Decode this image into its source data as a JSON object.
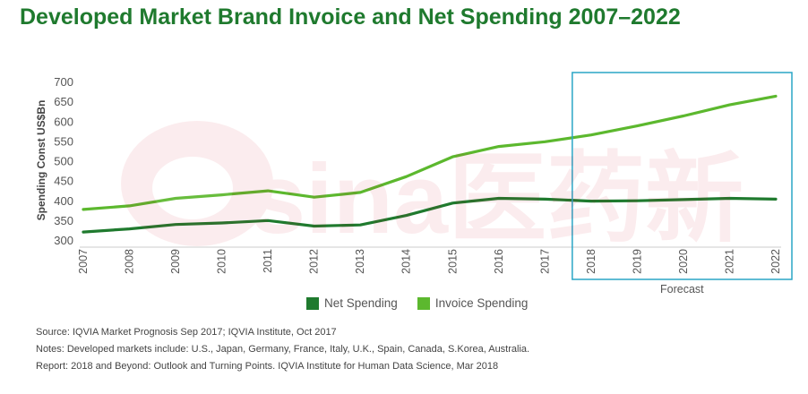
{
  "chart_data": {
    "type": "line",
    "title": "Developed Market Brand Invoice and Net Spending 2007–2022",
    "ylabel": "Spending Const US$Bn",
    "xlabel": "",
    "ylim": [
      300,
      700
    ],
    "yticks": [
      300,
      350,
      400,
      450,
      500,
      550,
      600,
      650,
      700
    ],
    "categories": [
      "2007",
      "2008",
      "2009",
      "2010",
      "2011",
      "2012",
      "2013",
      "2014",
      "2015",
      "2016",
      "2017",
      "2018",
      "2019",
      "2020",
      "2021",
      "2022"
    ],
    "series": [
      {
        "name": "Net Spending",
        "color": "#1f7a2e",
        "values": [
          320,
          328,
          339,
          343,
          349,
          335,
          338,
          362,
          393,
          405,
          403,
          398,
          399,
          402,
          405,
          403
        ]
      },
      {
        "name": "Invoice Spending",
        "color": "#5cb82e",
        "values": [
          377,
          386,
          405,
          414,
          424,
          408,
          420,
          460,
          510,
          536,
          548,
          565,
          588,
          613,
          641,
          663
        ]
      }
    ],
    "forecast": {
      "label": "Forecast",
      "from": "2018",
      "to": "2022",
      "border_color": "#2aa6c6"
    },
    "legend_position": "bottom-center",
    "grid": false
  },
  "notes": [
    "Source: IQVIA Market Prognosis Sep 2017; IQVIA Institute, Oct 2017",
    "Notes: Developed markets include: U.S., Japan, Germany, France, Italy, U.K., Spain, Canada, S.Korea, Australia.",
    "Report: 2018 and Beyond: Outlook and Turning Points. IQVIA Institute for Human Data Science, Mar 2018"
  ],
  "watermark": {
    "icon": "sina-logo-icon",
    "text": "sina医药新闻"
  }
}
